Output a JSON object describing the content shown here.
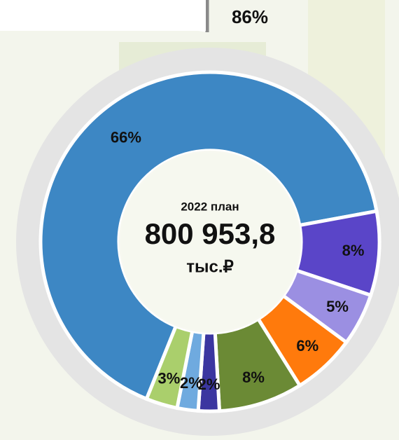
{
  "chart_data": {
    "type": "donut",
    "annotation": "86%",
    "center_text": [
      "2022 план",
      "800 953,8",
      "тыс.₽"
    ],
    "values": [
      66,
      8,
      5,
      6,
      8,
      2,
      2,
      3
    ],
    "value_labels": [
      "66%",
      "8%",
      "5%",
      "6%",
      "8%",
      "2%",
      "2%",
      "3%"
    ],
    "colors": [
      "#3d87c4",
      "#5a45c8",
      "#9b8fe2",
      "#ff7a0c",
      "#6b8a35",
      "#3b36a0",
      "#6faadf",
      "#aacf6c"
    ]
  }
}
